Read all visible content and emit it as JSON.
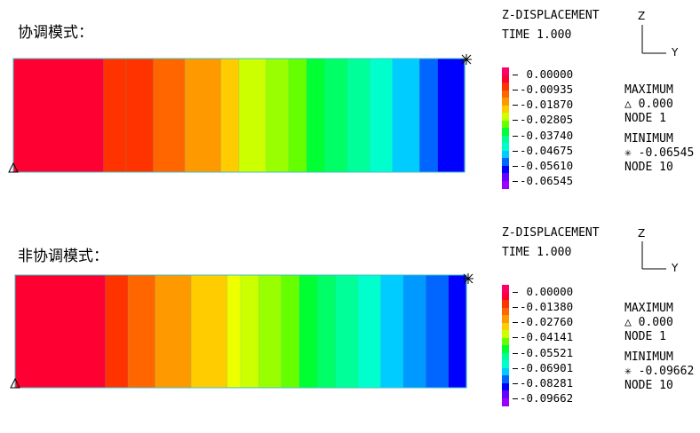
{
  "chart_data": [
    {
      "type": "heatmap",
      "title": "协调模式：",
      "variable": "Z-DISPLACEMENT",
      "time": "TIME 1.000",
      "colorbar": {
        "ticks": [
          "0.00000",
          "-0.00935",
          "-0.01870",
          "-0.02805",
          "-0.03740",
          "-0.04675",
          "-0.05610",
          "-0.06545"
        ],
        "colors": [
          "#ff0066",
          "#ff0033",
          "#ff3300",
          "#ff6600",
          "#ff9900",
          "#ffcc00",
          "#ccff00",
          "#66ff00",
          "#00ff33",
          "#00ff99",
          "#00ffcc",
          "#00ccff",
          "#0066ff",
          "#0000ff",
          "#6600ff",
          "#9900ff"
        ]
      },
      "bands": [
        {
          "x0": 0.0,
          "x1": 0.2,
          "color": "#ff0033"
        },
        {
          "x0": 0.2,
          "x1": 0.25,
          "color": "#ff3300"
        },
        {
          "x0": 0.25,
          "x1": 0.31,
          "color": "#ff3300"
        },
        {
          "x0": 0.31,
          "x1": 0.38,
          "color": "#ff6600"
        },
        {
          "x0": 0.38,
          "x1": 0.46,
          "color": "#ff9900"
        },
        {
          "x0": 0.46,
          "x1": 0.5,
          "color": "#ffcc00"
        },
        {
          "x0": 0.5,
          "x1": 0.56,
          "color": "#ccff00"
        },
        {
          "x0": 0.56,
          "x1": 0.61,
          "color": "#99ff00"
        },
        {
          "x0": 0.61,
          "x1": 0.65,
          "color": "#66ff00"
        },
        {
          "x0": 0.65,
          "x1": 0.69,
          "color": "#00ff33"
        },
        {
          "x0": 0.69,
          "x1": 0.74,
          "color": "#00ff66"
        },
        {
          "x0": 0.74,
          "x1": 0.79,
          "color": "#00ff99"
        },
        {
          "x0": 0.79,
          "x1": 0.84,
          "color": "#00ffcc"
        },
        {
          "x0": 0.84,
          "x1": 0.9,
          "color": "#00ccff"
        },
        {
          "x0": 0.9,
          "x1": 0.94,
          "color": "#0066ff"
        },
        {
          "x0": 0.94,
          "x1": 1.0,
          "color": "#0000ff"
        }
      ],
      "maximum": {
        "label": "MAXIMUM",
        "value": "0.000",
        "node": "NODE 1"
      },
      "minimum": {
        "label": "MINIMUM",
        "value": "-0.06545",
        "node": "NODE 10"
      },
      "axes": {
        "z": "Z",
        "y": "Y"
      }
    },
    {
      "type": "heatmap",
      "title": "非协调模式：",
      "variable": "Z-DISPLACEMENT",
      "time": "TIME 1.000",
      "colorbar": {
        "ticks": [
          "0.00000",
          "-0.01380",
          "-0.02760",
          "-0.04141",
          "-0.05521",
          "-0.06901",
          "-0.08281",
          "-0.09662"
        ],
        "colors": [
          "#ff0066",
          "#ff0033",
          "#ff3300",
          "#ff6600",
          "#ff9900",
          "#ffcc00",
          "#ccff00",
          "#66ff00",
          "#00ff33",
          "#00ff99",
          "#00ffcc",
          "#00ccff",
          "#0066ff",
          "#0000ff",
          "#6600ff",
          "#9900ff"
        ]
      },
      "bands": [
        {
          "x0": 0.0,
          "x1": 0.2,
          "color": "#ff0033"
        },
        {
          "x0": 0.2,
          "x1": 0.25,
          "color": "#ff3300"
        },
        {
          "x0": 0.25,
          "x1": 0.31,
          "color": "#ff6600"
        },
        {
          "x0": 0.31,
          "x1": 0.39,
          "color": "#ff9900"
        },
        {
          "x0": 0.39,
          "x1": 0.47,
          "color": "#ffcc00"
        },
        {
          "x0": 0.47,
          "x1": 0.5,
          "color": "#eeff00"
        },
        {
          "x0": 0.5,
          "x1": 0.54,
          "color": "#ccff00"
        },
        {
          "x0": 0.54,
          "x1": 0.59,
          "color": "#99ff00"
        },
        {
          "x0": 0.59,
          "x1": 0.63,
          "color": "#66ff00"
        },
        {
          "x0": 0.63,
          "x1": 0.67,
          "color": "#00ff33"
        },
        {
          "x0": 0.67,
          "x1": 0.71,
          "color": "#00ff66"
        },
        {
          "x0": 0.71,
          "x1": 0.76,
          "color": "#00ff99"
        },
        {
          "x0": 0.76,
          "x1": 0.81,
          "color": "#00ffcc"
        },
        {
          "x0": 0.81,
          "x1": 0.86,
          "color": "#00ccff"
        },
        {
          "x0": 0.86,
          "x1": 0.91,
          "color": "#0099ff"
        },
        {
          "x0": 0.91,
          "x1": 0.96,
          "color": "#0066ff"
        },
        {
          "x0": 0.96,
          "x1": 1.0,
          "color": "#0000ff"
        }
      ],
      "maximum": {
        "label": "MAXIMUM",
        "value": "0.000",
        "node": "NODE 1"
      },
      "minimum": {
        "label": "MINIMUM",
        "value": "-0.09662",
        "node": "NODE 10"
      },
      "axes": {
        "z": "Z",
        "y": "Y"
      }
    }
  ]
}
